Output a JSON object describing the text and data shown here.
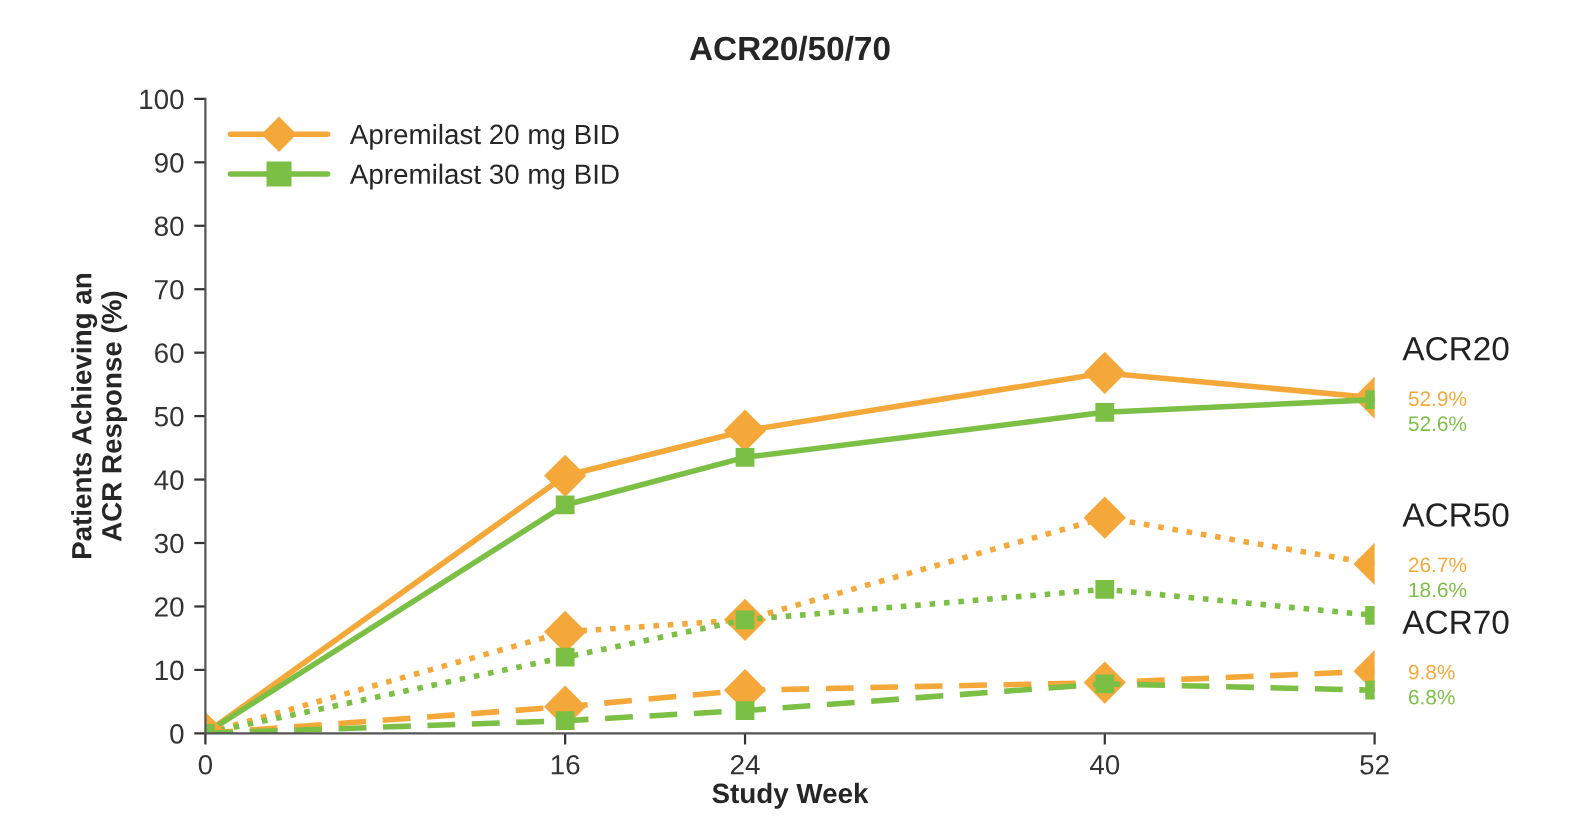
{
  "chart_data": {
    "type": "line",
    "title": "ACR20/50/70",
    "xlabel": "Study Week",
    "ylabel": "Patients Achieving an\nACR Response (%)",
    "x": [
      0,
      16,
      24,
      40,
      52
    ],
    "xlim": [
      0,
      52
    ],
    "xticks": [
      0,
      16,
      24,
      40,
      52
    ],
    "ylim": [
      0,
      100
    ],
    "yticks": [
      0,
      10,
      20,
      30,
      40,
      50,
      60,
      70,
      80,
      90,
      100
    ],
    "grid": false,
    "legend": "top left",
    "series": [
      {
        "name": "Apremilast 20 mg BID",
        "color": "#f5a83a",
        "marker": "diamond",
        "line_style": "solid",
        "values": [
          0,
          40.6,
          47.7,
          56.8,
          52.9
        ],
        "value_labels": [
          null,
          null,
          null,
          null,
          "52.9%"
        ]
      },
      {
        "name": "Apremilast 30 mg BID",
        "color": "#7cbf45",
        "marker": "square",
        "line_style": "solid",
        "values": [
          0,
          36,
          43.5,
          50.6,
          52.6
        ],
        "value_labels": [
          null,
          null,
          null,
          null,
          "52.6%"
        ]
      },
      {
        "color": "#f5a83a",
        "marker": "diamond",
        "line_style": "dotted",
        "values": [
          0,
          16,
          17.9,
          34,
          26.7
        ],
        "value_labels": [
          null,
          null,
          null,
          null,
          "26.7%"
        ]
      },
      {
        "color": "#7cbf45",
        "marker": "square",
        "line_style": "dotted",
        "values": [
          0,
          12,
          17.9,
          22.7,
          18.6
        ],
        "value_labels": [
          null,
          null,
          null,
          null,
          "18.6%"
        ]
      },
      {
        "color": "#f5a83a",
        "marker": "diamond",
        "line_style": "dashed",
        "values": [
          0,
          4.2,
          6.8,
          8,
          9.8
        ],
        "value_labels": [
          null,
          null,
          null,
          null,
          "9.8%"
        ]
      },
      {
        "color": "#7cbf45",
        "marker": "square",
        "line_style": "dashed",
        "values": [
          0,
          2,
          3.6,
          7.8,
          6.8
        ],
        "value_labels": [
          null,
          null,
          null,
          null,
          "6.8%"
        ]
      }
    ],
    "annotations": [
      "ACR20",
      "ACR50",
      "ACR70"
    ]
  }
}
